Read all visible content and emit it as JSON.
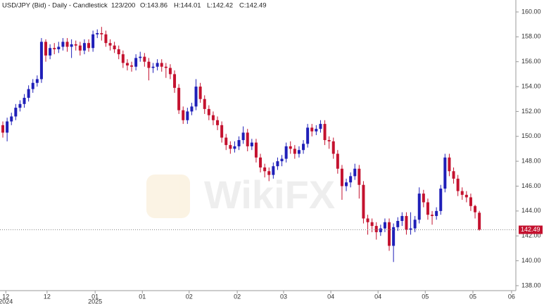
{
  "chart_data": {
    "type": "candlestick",
    "title": "USD/JPY (Bid) - Daily - Candlestick",
    "counter": "123/200",
    "ohlc_labels": [
      "O:143.86",
      "H:144.01",
      "L:142.42",
      "C:142.49"
    ],
    "watermark": "WikiFX",
    "up_color": "#1f1fb8",
    "down_color": "#c4122f",
    "open": [
      150.9,
      150.3,
      151.2,
      151.6,
      152.3,
      152.6,
      153.1,
      153.8,
      154.3,
      154.6,
      157.6,
      156.5,
      157.1,
      157.0,
      157.2,
      157.6,
      157.2,
      157.4,
      157.3,
      156.9,
      157.5,
      157.1,
      158.2,
      158.3,
      158.2,
      157.5,
      157.3,
      157.0,
      156.6,
      155.9,
      155.7,
      155.6,
      156.3,
      156.4,
      156.0,
      155.5,
      155.6,
      155.9,
      155.6,
      155.5,
      155.0,
      153.9,
      152.1,
      151.3,
      152.0,
      152.4,
      154.0,
      153.0,
      152.2,
      151.7,
      151.3,
      150.9,
      149.9,
      149.3,
      149.0,
      149.2,
      149.7,
      150.3,
      149.2,
      149.5,
      148.3,
      147.5,
      147.2,
      146.9,
      147.6,
      148.0,
      148.2,
      149.2,
      149.0,
      148.6,
      148.9,
      149.4,
      150.7,
      150.4,
      150.6,
      151.0,
      149.7,
      149.6,
      148.6,
      147.4,
      146.0,
      146.3,
      146.8,
      147.4,
      146.1,
      143.4,
      143.1,
      142.8,
      142.3,
      142.6,
      143.1,
      141.2,
      142.7,
      143.2,
      143.6,
      142.5,
      142.6,
      143.3,
      145.4,
      144.7,
      143.7,
      143.6,
      144.0,
      145.8,
      148.3,
      147.2,
      146.6,
      145.6,
      145.3,
      145.1,
      144.4,
      143.86
    ],
    "high": [
      151.2,
      151.5,
      151.9,
      152.6,
      152.9,
      153.4,
      154.1,
      154.6,
      154.9,
      157.9,
      157.8,
      157.4,
      157.5,
      157.6,
      157.9,
      157.9,
      157.8,
      157.7,
      157.6,
      157.8,
      157.8,
      158.5,
      158.6,
      158.8,
      158.5,
      157.8,
      157.6,
      157.3,
      156.9,
      156.2,
      156.0,
      156.6,
      156.8,
      156.7,
      156.3,
      155.9,
      156.2,
      156.2,
      155.9,
      155.8,
      155.3,
      154.2,
      152.4,
      152.3,
      152.7,
      154.6,
      154.3,
      153.3,
      152.5,
      152.0,
      151.6,
      151.2,
      150.2,
      149.6,
      149.6,
      150.0,
      150.8,
      150.6,
      149.8,
      149.8,
      148.6,
      147.8,
      147.5,
      147.9,
      148.3,
      148.5,
      149.5,
      149.6,
      149.3,
      149.2,
      149.7,
      151.0,
      151.0,
      150.9,
      151.3,
      151.3,
      150.0,
      149.9,
      148.9,
      147.7,
      146.6,
      147.1,
      147.8,
      147.7,
      146.4,
      143.7,
      143.4,
      143.1,
      142.9,
      143.4,
      143.4,
      143.0,
      143.5,
      143.9,
      143.9,
      143.9,
      143.6,
      145.9,
      145.7,
      145.0,
      144.0,
      144.3,
      146.1,
      148.6,
      148.6,
      147.5,
      146.9,
      145.9,
      145.6,
      145.4,
      144.5,
      144.01
    ],
    "low": [
      149.9,
      149.6,
      150.9,
      151.3,
      152.0,
      152.3,
      152.8,
      153.5,
      154.0,
      154.3,
      156.0,
      156.2,
      156.6,
      156.7,
      156.9,
      156.8,
      156.3,
      156.9,
      156.5,
      156.6,
      156.8,
      156.8,
      157.9,
      157.7,
      157.2,
      156.9,
      156.7,
      156.2,
      155.5,
      155.3,
      155.2,
      155.3,
      156.0,
      155.6,
      154.5,
      155.1,
      155.3,
      155.2,
      154.7,
      154.6,
      153.5,
      151.8,
      151.0,
      151.0,
      151.7,
      152.1,
      152.7,
      151.8,
      151.3,
      150.9,
      150.5,
      149.5,
      148.9,
      148.6,
      148.7,
      148.9,
      149.4,
      148.8,
      148.9,
      147.9,
      147.1,
      146.7,
      146.4,
      146.6,
      147.3,
      147.6,
      147.9,
      148.6,
      148.2,
      148.3,
      148.6,
      149.1,
      150.0,
      150.1,
      150.3,
      149.3,
      149.0,
      148.2,
      147.0,
      144.9,
      145.6,
      145.9,
      146.5,
      145.0,
      143.0,
      142.1,
      142.3,
      141.7,
      142.0,
      142.3,
      140.8,
      139.9,
      142.4,
      142.8,
      142.1,
      142.1,
      142.3,
      143.0,
      144.3,
      143.3,
      142.9,
      143.3,
      143.7,
      145.5,
      146.8,
      146.2,
      145.2,
      144.9,
      144.7,
      144.0,
      143.4,
      142.42
    ],
    "close": [
      150.3,
      151.2,
      151.6,
      152.3,
      152.6,
      153.1,
      153.8,
      154.3,
      154.6,
      157.6,
      156.5,
      157.1,
      157.0,
      157.2,
      157.6,
      157.2,
      157.4,
      157.3,
      156.9,
      157.5,
      157.1,
      158.2,
      158.3,
      158.2,
      157.5,
      157.3,
      157.0,
      156.6,
      155.9,
      155.7,
      155.6,
      156.3,
      156.4,
      156.0,
      155.5,
      155.6,
      155.9,
      155.6,
      155.5,
      155.0,
      153.9,
      152.1,
      151.3,
      152.0,
      152.4,
      154.0,
      153.0,
      152.2,
      151.7,
      151.3,
      150.9,
      149.9,
      149.3,
      149.0,
      149.2,
      149.7,
      150.3,
      149.2,
      149.5,
      148.3,
      147.5,
      147.2,
      146.9,
      147.6,
      148.0,
      148.2,
      149.2,
      149.0,
      148.6,
      148.9,
      149.4,
      150.7,
      150.4,
      150.6,
      151.0,
      149.7,
      149.6,
      148.6,
      147.4,
      146.0,
      146.3,
      146.8,
      147.4,
      146.1,
      143.4,
      143.1,
      142.8,
      142.3,
      142.6,
      143.1,
      141.2,
      142.7,
      143.2,
      143.6,
      142.5,
      142.6,
      143.3,
      145.4,
      144.7,
      143.7,
      143.6,
      144.0,
      145.8,
      148.3,
      147.2,
      146.6,
      145.6,
      145.3,
      145.1,
      144.4,
      143.9,
      142.49
    ],
    "last_price": {
      "value": 142.49,
      "label": "142.49"
    },
    "ylim": [
      137.6,
      160.96
    ],
    "yticks": [
      {
        "value": 138,
        "label": "138.00"
      },
      {
        "value": 140,
        "label": "140.00"
      },
      {
        "value": 142,
        "label": "142.00"
      },
      {
        "value": 144,
        "label": "144.00"
      },
      {
        "value": 146,
        "label": "146.00"
      },
      {
        "value": 148,
        "label": "148.00"
      },
      {
        "value": 150,
        "label": "150.00"
      },
      {
        "value": 152,
        "label": "152.00"
      },
      {
        "value": 154,
        "label": "154.00"
      },
      {
        "value": 156,
        "label": "156.00"
      },
      {
        "value": 158,
        "label": "158.00"
      },
      {
        "value": 160,
        "label": "160.00"
      }
    ],
    "xlim": [
      -0.66,
      119.5
    ],
    "xticks": [
      {
        "value": 0.7,
        "label": "12",
        "year": "2024"
      },
      {
        "value": 10.3,
        "label": "12"
      },
      {
        "value": 21.5,
        "label": "01",
        "year": "2025"
      },
      {
        "value": 32.5,
        "label": "01"
      },
      {
        "value": 43.4,
        "label": "02"
      },
      {
        "value": 54.6,
        "label": "02"
      },
      {
        "value": 65.4,
        "label": "03"
      },
      {
        "value": 76.4,
        "label": "04"
      },
      {
        "value": 87.4,
        "label": "04"
      },
      {
        "value": 98.4,
        "label": "05"
      },
      {
        "value": 109.5,
        "label": "05"
      },
      {
        "value": 118.5,
        "label": "06"
      }
    ]
  }
}
